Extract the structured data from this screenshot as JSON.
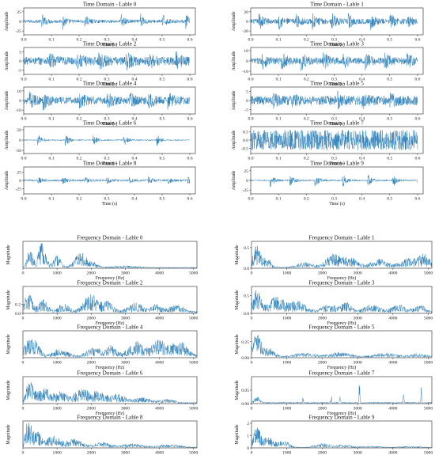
{
  "figure": {
    "trace_color": "#1f77b4",
    "sections": [
      "time domain waveforms",
      "frequency domain spectra"
    ]
  },
  "chart_data": [
    {
      "id": "t0",
      "type": "line",
      "domain": "time",
      "title": "Time Domain - Lable 0",
      "xlabel": "Time (s)",
      "ylabel": "Amplitude",
      "xlim": [
        0,
        0.62
      ],
      "ylim": [
        -35,
        35
      ],
      "xticks": [
        "0.0",
        "0.1",
        "0.2",
        "0.3",
        "0.4",
        "0.5",
        "0.6"
      ],
      "yticks": [
        [
          "-25",
          -25
        ],
        [
          "0",
          0
        ],
        [
          "25",
          25
        ]
      ],
      "signal": {
        "duration_s": 0.6,
        "noise_amp": 4,
        "burst_amp": 20,
        "burst_period_s": 0.072,
        "burst_decay_s": 0.012,
        "bursts": [
          0.065,
          0.14,
          0.22,
          0.35,
          0.42,
          0.5,
          0.585
        ]
      }
    },
    {
      "id": "t1",
      "type": "line",
      "domain": "time",
      "title": "Time Domain - Lable 1",
      "xlabel": "Time (s)",
      "ylabel": "Amplitude",
      "xlim": [
        0,
        0.62
      ],
      "ylim": [
        -28,
        28
      ],
      "xticks": [
        "0.0",
        "0.1",
        "0.2",
        "0.3",
        "0.4",
        "0.5",
        "0.6"
      ],
      "yticks": [
        [
          "-20",
          -20
        ],
        [
          "0",
          0
        ],
        [
          "20",
          20
        ]
      ],
      "signal": {
        "duration_s": 0.6,
        "noise_amp": 5,
        "burst_amp": 15,
        "burst_decay_s": 0.015,
        "bursts": [
          0.03,
          0.1,
          0.16,
          0.22,
          0.29,
          0.35,
          0.43,
          0.5,
          0.56
        ]
      }
    },
    {
      "id": "t2",
      "type": "line",
      "domain": "time",
      "title": "Time Domain - Lable 2",
      "xlabel": "Time (s)",
      "ylabel": "Amplitude",
      "xlim": [
        0,
        0.62
      ],
      "ylim": [
        -7.5,
        7.5
      ],
      "xticks": [
        "0.0",
        "0.1",
        "0.2",
        "0.3",
        "0.4",
        "0.5",
        "0.6"
      ],
      "yticks": [
        [
          "-5",
          -5
        ],
        [
          "0",
          0
        ],
        [
          "5",
          5
        ]
      ],
      "signal": {
        "duration_s": 0.6,
        "noise_amp": 2.2,
        "burst_amp": 3.5,
        "burst_decay_s": 0.02,
        "bursts": [
          0.09,
          0.19,
          0.27,
          0.37,
          0.45,
          0.55
        ]
      }
    },
    {
      "id": "t3",
      "type": "line",
      "domain": "time",
      "title": "Time Domain - Lable 3",
      "xlabel": "Time (s)",
      "ylabel": "Amplitude",
      "xlim": [
        0,
        0.62
      ],
      "ylim": [
        -13,
        13
      ],
      "xticks": [
        "0.0",
        "0.1",
        "0.2",
        "0.3",
        "0.4",
        "0.5",
        "0.6"
      ],
      "yticks": [
        [
          "-10",
          -10
        ],
        [
          "0",
          0
        ],
        [
          "10",
          10
        ]
      ],
      "signal": {
        "duration_s": 0.6,
        "noise_amp": 3,
        "burst_amp": 7,
        "burst_decay_s": 0.018,
        "bursts": [
          0.04,
          0.11,
          0.18,
          0.26,
          0.33,
          0.41,
          0.48,
          0.56
        ]
      }
    },
    {
      "id": "t4",
      "type": "line",
      "domain": "time",
      "title": "Time Domain - Lable 4",
      "xlabel": "Time (s)",
      "ylabel": "Amplitude",
      "xlim": [
        0,
        0.62
      ],
      "ylim": [
        -14,
        14
      ],
      "xticks": [
        "0.0",
        "0.1",
        "0.2",
        "0.3",
        "0.4",
        "0.5",
        "0.6"
      ],
      "yticks": [
        [
          "-10",
          -10
        ],
        [
          "0",
          0
        ],
        [
          "10",
          10
        ]
      ],
      "signal": {
        "duration_s": 0.6,
        "noise_amp": 3.5,
        "burst_amp": 7,
        "burst_decay_s": 0.02,
        "bursts": [
          0.02,
          0.07,
          0.2,
          0.3,
          0.38,
          0.45,
          0.52
        ]
      }
    },
    {
      "id": "t5",
      "type": "line",
      "domain": "time",
      "title": "Time Domain - Lable 5",
      "xlabel": "Time (s)",
      "ylabel": "Amplitude",
      "xlim": [
        0,
        0.62
      ],
      "ylim": [
        -7.5,
        7.5
      ],
      "xticks": [
        "0.0",
        "0.1",
        "0.2",
        "0.3",
        "0.4",
        "0.5",
        "0.6"
      ],
      "yticks": [
        [
          "-5",
          -5
        ],
        [
          "0",
          0
        ],
        [
          "5",
          5
        ]
      ],
      "signal": {
        "duration_s": 0.6,
        "noise_amp": 2.5,
        "burst_amp": 3.5,
        "burst_decay_s": 0.015,
        "bursts": [
          0.08,
          0.15,
          0.31,
          0.4,
          0.5
        ]
      }
    },
    {
      "id": "t6",
      "type": "line",
      "domain": "time",
      "title": "Time Domain - Lable 6",
      "xlabel": "Time (s)",
      "ylabel": "Amplitude",
      "xlim": [
        0,
        0.62
      ],
      "ylim": [
        -65,
        65
      ],
      "xticks": [
        "0.0",
        "0.1",
        "0.2",
        "0.3",
        "0.4",
        "0.5",
        "0.6"
      ],
      "yticks": [
        [
          "-50",
          -50
        ],
        [
          "0",
          0
        ],
        [
          "50",
          50
        ]
      ],
      "signal": {
        "duration_s": 0.6,
        "noise_amp": 3,
        "burst_amp": 30,
        "burst_decay_s": 0.012,
        "bursts": [
          0.05,
          0.15,
          0.25,
          0.36,
          0.48
        ]
      }
    },
    {
      "id": "t7",
      "type": "line",
      "domain": "time",
      "title": "Time Domain - Lable 7",
      "xlabel": "Time (s)",
      "ylabel": "Amplitude",
      "xlim": [
        0,
        0.62
      ],
      "ylim": [
        -0.8,
        0.8
      ],
      "xticks": [
        "0.0",
        "0.1",
        "0.2",
        "0.3",
        "0.4",
        "0.5",
        "0.6"
      ],
      "yticks": [
        [
          "-0.5",
          -0.5
        ],
        [
          "0.0",
          0
        ],
        [
          "0.5",
          0.5
        ]
      ],
      "signal": {
        "duration_s": 0.6,
        "noise_amp": 0.6,
        "burst_amp": 0,
        "burst_decay_s": 0.01,
        "bursts": []
      }
    },
    {
      "id": "t8",
      "type": "line",
      "domain": "time",
      "title": "Time Domain - Lable 8",
      "xlabel": "Time (s)",
      "ylabel": "Amplitude",
      "xlim": [
        0,
        0.62
      ],
      "ylim": [
        -40,
        40
      ],
      "xticks": [
        "0.0",
        "0.1",
        "0.2",
        "0.3",
        "0.4",
        "0.5",
        "0.6"
      ],
      "yticks": [
        [
          "-25",
          -25
        ],
        [
          "0",
          0
        ],
        [
          "25",
          25
        ]
      ],
      "signal": {
        "duration_s": 0.6,
        "noise_amp": 3,
        "burst_amp": 10,
        "burst_decay_s": 0.013,
        "bursts": [
          0.05,
          0.14,
          0.22,
          0.3,
          0.38,
          0.45,
          0.52,
          0.59
        ]
      }
    },
    {
      "id": "t9",
      "type": "line",
      "domain": "time",
      "title": "Time Domain - Lable 9",
      "xlabel": "Time (s)",
      "ylabel": "Amplitude",
      "xlim": [
        0,
        0.62
      ],
      "ylim": [
        -35,
        35
      ],
      "xticks": [
        "0.0",
        "0.1",
        "0.2",
        "0.3",
        "0.4",
        "0.5",
        "0.6"
      ],
      "yticks": [
        [
          "-25",
          -25
        ],
        [
          "0",
          0
        ],
        [
          "25",
          25
        ]
      ],
      "signal": {
        "duration_s": 0.6,
        "noise_amp": 2,
        "burst_amp": 18,
        "burst_decay_s": 0.012,
        "bursts": [
          0.07,
          0.14,
          0.23,
          0.33,
          0.42,
          0.51,
          0.6
        ]
      }
    },
    {
      "id": "f0",
      "type": "line",
      "domain": "frequency",
      "title": "Frequency Domain - Lable 0",
      "xlabel": "Frequency (Hz)",
      "ylabel": "Magnitude",
      "xlim": [
        0,
        5100
      ],
      "ylim": [
        0,
        0.85
      ],
      "xticks": [
        "0",
        "1000",
        "2000",
        "3000",
        "4000",
        "5000"
      ],
      "yticks": [],
      "spectrum": {
        "floor": 0.03,
        "peaks": [
          [
            200,
            0.5,
            110
          ],
          [
            550,
            0.7,
            160
          ],
          [
            1000,
            0.35,
            150
          ],
          [
            1700,
            0.42,
            250
          ],
          [
            2100,
            0.12,
            150
          ],
          [
            3000,
            0.05,
            500
          ]
        ]
      }
    },
    {
      "id": "f1",
      "type": "line",
      "domain": "frequency",
      "title": "Frequency Domain - Lable 1",
      "xlabel": "Frequency (Hz)",
      "ylabel": "Magnitude",
      "xlim": [
        0,
        5100
      ],
      "ylim": [
        0,
        0.65
      ],
      "xticks": [
        "0",
        "1000",
        "2000",
        "3000",
        "4000",
        "5000"
      ],
      "yticks": [
        [
          "0.0",
          0
        ],
        [
          "0.5",
          0.5
        ]
      ],
      "spectrum": {
        "floor": 0.03,
        "peaks": [
          [
            150,
            0.5,
            140
          ],
          [
            450,
            0.22,
            140
          ],
          [
            1500,
            0.1,
            300
          ],
          [
            2300,
            0.28,
            300
          ],
          [
            2800,
            0.2,
            300
          ],
          [
            3600,
            0.18,
            300
          ],
          [
            4500,
            0.2,
            400
          ],
          [
            4900,
            0.22,
            200
          ]
        ]
      }
    },
    {
      "id": "f2",
      "type": "line",
      "domain": "frequency",
      "title": "Frequency Domain - Lable 2",
      "xlabel": "Frequency (Hz)",
      "ylabel": "Magnitude",
      "xlim": [
        0,
        5100
      ],
      "ylim": [
        0,
        0.6
      ],
      "xticks": [
        "0",
        "1000",
        "2000",
        "3000",
        "4000",
        "5000"
      ],
      "yticks": [
        [
          "0.0",
          0
        ],
        [
          "0.2",
          0.2
        ]
      ],
      "spectrum": {
        "floor": 0.04,
        "peaks": [
          [
            150,
            0.4,
            150
          ],
          [
            600,
            0.25,
            200
          ],
          [
            1200,
            0.18,
            200
          ],
          [
            2000,
            0.35,
            300
          ],
          [
            2500,
            0.2,
            200
          ],
          [
            3300,
            0.18,
            300
          ],
          [
            3900,
            0.16,
            200
          ],
          [
            4500,
            0.14,
            300
          ]
        ]
      }
    },
    {
      "id": "f3",
      "type": "line",
      "domain": "frequency",
      "title": "Frequency Domain - Lable 3",
      "xlabel": "Frequency (Hz)",
      "ylabel": "Magnitude",
      "xlim": [
        0,
        5100
      ],
      "ylim": [
        0,
        0.75
      ],
      "xticks": [
        "0",
        "1000",
        "2000",
        "3000",
        "4000",
        "5000"
      ],
      "yticks": [
        [
          "0.0",
          0
        ],
        [
          "0.5",
          0.5
        ]
      ],
      "spectrum": {
        "floor": 0.04,
        "peaks": [
          [
            150,
            0.55,
            150
          ],
          [
            700,
            0.4,
            300
          ],
          [
            1300,
            0.3,
            300
          ],
          [
            2200,
            0.2,
            300
          ],
          [
            2700,
            0.25,
            200
          ],
          [
            3400,
            0.2,
            300
          ],
          [
            4200,
            0.2,
            300
          ],
          [
            4800,
            0.18,
            200
          ]
        ]
      }
    },
    {
      "id": "f4",
      "type": "line",
      "domain": "frequency",
      "title": "Frequency Domain - Lable 4",
      "xlabel": "Frequency (Hz)",
      "ylabel": "Magnitude",
      "xlim": [
        0,
        5100
      ],
      "ylim": [
        0,
        0.6
      ],
      "xticks": [
        "0",
        "1000",
        "2000",
        "3000",
        "4000",
        "5000"
      ],
      "yticks": [],
      "spectrum": {
        "floor": 0.04,
        "peaks": [
          [
            150,
            0.35,
            150
          ],
          [
            400,
            0.3,
            150
          ],
          [
            1100,
            0.15,
            300
          ],
          [
            2100,
            0.18,
            300
          ],
          [
            2600,
            0.2,
            200
          ],
          [
            3300,
            0.3,
            300
          ],
          [
            4000,
            0.35,
            300
          ],
          [
            4600,
            0.3,
            300
          ]
        ]
      }
    },
    {
      "id": "f5",
      "type": "line",
      "domain": "frequency",
      "title": "Frequency Domain - Lable 5",
      "xlabel": "Frequency (Hz)",
      "ylabel": "Magnitude",
      "xlim": [
        0,
        5100
      ],
      "ylim": [
        0,
        0.42
      ],
      "xticks": [
        "0",
        "1000",
        "2000",
        "3000",
        "4000",
        "5000"
      ],
      "yticks": [
        [
          "0.00",
          0
        ],
        [
          "0.25",
          0.25
        ]
      ],
      "spectrum": {
        "floor": 0.02,
        "peaks": [
          [
            150,
            0.35,
            150
          ],
          [
            500,
            0.12,
            200
          ],
          [
            1500,
            0.05,
            400
          ],
          [
            2500,
            0.06,
            400
          ],
          [
            3800,
            0.05,
            400
          ],
          [
            4700,
            0.04,
            300
          ]
        ]
      }
    },
    {
      "id": "f6",
      "type": "line",
      "domain": "frequency",
      "title": "Frequency Domain - Lable 6",
      "xlabel": "Frequency (Hz)",
      "ylabel": "Magnitude",
      "xlim": [
        0,
        5100
      ],
      "ylim": [
        0,
        0.7
      ],
      "xticks": [
        "0",
        "1000",
        "2000",
        "3000",
        "4000",
        "5000"
      ],
      "yticks": [],
      "spectrum": {
        "floor": 0.03,
        "peaks": [
          [
            200,
            0.5,
            150
          ],
          [
            600,
            0.35,
            250
          ],
          [
            1100,
            0.25,
            250
          ],
          [
            1700,
            0.3,
            300
          ],
          [
            2200,
            0.25,
            300
          ],
          [
            2800,
            0.2,
            300
          ],
          [
            3500,
            0.12,
            300
          ],
          [
            4200,
            0.08,
            300
          ]
        ]
      }
    },
    {
      "id": "f7",
      "type": "line",
      "domain": "frequency",
      "title": "Frequency Domain - Lable 7",
      "xlabel": "Frequency (Hz)",
      "ylabel": "Magnitude",
      "xlim": [
        0,
        5100
      ],
      "ylim": [
        0,
        0.1
      ],
      "xticks": [
        "0",
        "1000",
        "2000",
        "3000",
        "4000",
        "5000"
      ],
      "yticks": [
        [
          "0.00",
          0
        ],
        [
          "0.05",
          0.05
        ]
      ],
      "spectrum": {
        "floor": 0.005,
        "peaks": [
          [
            150,
            0.02,
            100
          ],
          [
            1450,
            0.03,
            20
          ],
          [
            2250,
            0.04,
            20
          ],
          [
            2500,
            0.025,
            20
          ],
          [
            3050,
            0.08,
            15
          ],
          [
            4300,
            0.03,
            20
          ],
          [
            4800,
            0.05,
            20
          ]
        ]
      }
    },
    {
      "id": "f8",
      "type": "line",
      "domain": "frequency",
      "title": "Frequency Domain - Lable 8",
      "xlabel": "Frequency (Hz)",
      "ylabel": "Magnitude",
      "xlim": [
        0,
        5100
      ],
      "ylim": [
        0,
        0.75
      ],
      "xticks": [
        "0",
        "1000",
        "2000",
        "3000",
        "4000",
        "5000"
      ],
      "yticks": [],
      "spectrum": {
        "floor": 0.03,
        "peaks": [
          [
            150,
            0.6,
            120
          ],
          [
            400,
            0.4,
            200
          ],
          [
            900,
            0.3,
            250
          ],
          [
            1500,
            0.2,
            300
          ],
          [
            2300,
            0.12,
            300
          ],
          [
            3200,
            0.08,
            400
          ],
          [
            4300,
            0.06,
            400
          ]
        ]
      }
    },
    {
      "id": "f9",
      "type": "line",
      "domain": "frequency",
      "title": "Frequency Domain - Lable 9",
      "xlabel": "Frequency (Hz)",
      "ylabel": "Magnitude",
      "xlim": [
        0,
        5100
      ],
      "ylim": [
        0,
        2.2
      ],
      "xticks": [
        "0",
        "1000",
        "2000",
        "3000",
        "4000",
        "5000"
      ],
      "yticks": [
        [
          "0",
          0
        ],
        [
          "1",
          1
        ],
        [
          "2",
          2
        ]
      ],
      "spectrum": {
        "floor": 0.04,
        "peaks": [
          [
            150,
            1.6,
            130
          ],
          [
            450,
            0.8,
            200
          ],
          [
            900,
            0.5,
            250
          ],
          [
            2000,
            0.3,
            300
          ],
          [
            2600,
            0.2,
            300
          ],
          [
            3400,
            0.12,
            400
          ],
          [
            4500,
            0.1,
            400
          ]
        ]
      }
    }
  ]
}
